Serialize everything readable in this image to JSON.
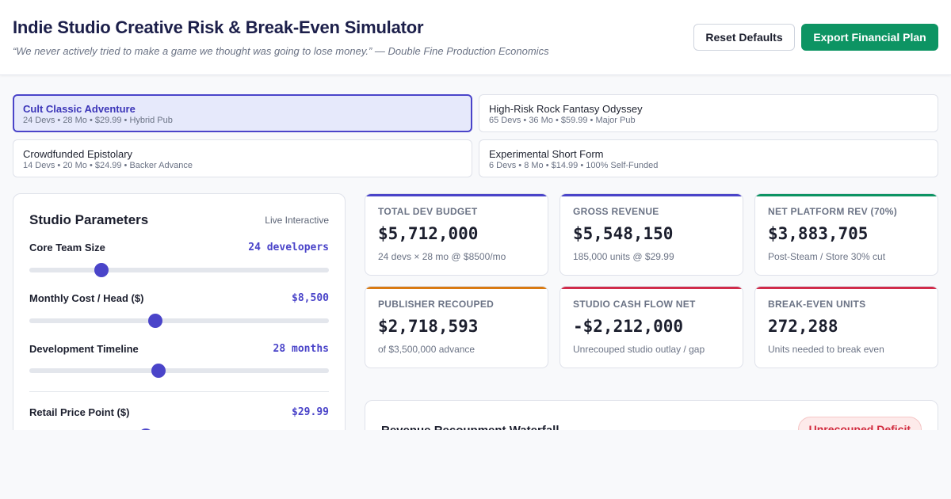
{
  "header": {
    "title": "Indie Studio Creative Risk & Break-Even Simulator",
    "quote": "“We never actively tried to make a game we thought was going to lose money.” — Double Fine Production Economics",
    "reset_label": "Reset Defaults",
    "export_label": "Export Financial Plan"
  },
  "presets": [
    {
      "name": "Cult Classic Adventure",
      "meta": "24 Devs • 28 Mo • $29.99 • Hybrid Pub",
      "active": true
    },
    {
      "name": "High-Risk Rock Fantasy Odyssey",
      "meta": "65 Devs • 36 Mo • $59.99 • Major Pub",
      "active": false
    },
    {
      "name": "Crowdfunded Epistolary",
      "meta": "14 Devs • 20 Mo • $24.99 • Backer Advance",
      "active": false
    },
    {
      "name": "Experimental Short Form",
      "meta": "6 Devs • 8 Mo • $14.99 • 100% Self-Funded",
      "active": false
    }
  ],
  "parameters": {
    "title": "Studio Parameters",
    "tag": "Live Interactive",
    "items": [
      {
        "label": "Core Team Size",
        "value": "24 developers",
        "level": 0.24
      },
      {
        "label": "Monthly Cost / Head ($)",
        "value": "$8,500",
        "level": 0.42
      },
      {
        "label": "Development Timeline",
        "value": "28 months",
        "level": 0.43
      },
      {
        "label": "Retail Price Point ($)",
        "value": "$29.99",
        "level": 0.39
      }
    ]
  },
  "metrics": [
    {
      "label": "TOTAL DEV BUDGET",
      "value": "$5,712,000",
      "note": "24 devs × 28 mo @ $8500/mo",
      "accent": "#4a44c9"
    },
    {
      "label": "GROSS REVENUE",
      "value": "$5,548,150",
      "note": "185,000 units @ $29.99",
      "accent": "#4a44c9"
    },
    {
      "label": "NET PLATFORM REV (70%)",
      "value": "$3,883,705",
      "note": "Post-Steam / Store 30% cut",
      "accent": "#0d9463"
    },
    {
      "label": "PUBLISHER RECOUPED",
      "value": "$2,718,593",
      "note": "of $3,500,000 advance",
      "accent": "#d97a12"
    },
    {
      "label": "STUDIO CASH FLOW NET",
      "value": "-$2,212,000",
      "note": "Unrecouped studio outlay / gap",
      "accent": "#d12b4a"
    },
    {
      "label": "BREAK-EVEN UNITS",
      "value": "272,288",
      "note": "Units needed to break even",
      "accent": "#d12b4a"
    }
  ],
  "waterfall": {
    "title": "Revenue Recoupment Waterfall",
    "badge": "Unrecouped Deficit"
  }
}
